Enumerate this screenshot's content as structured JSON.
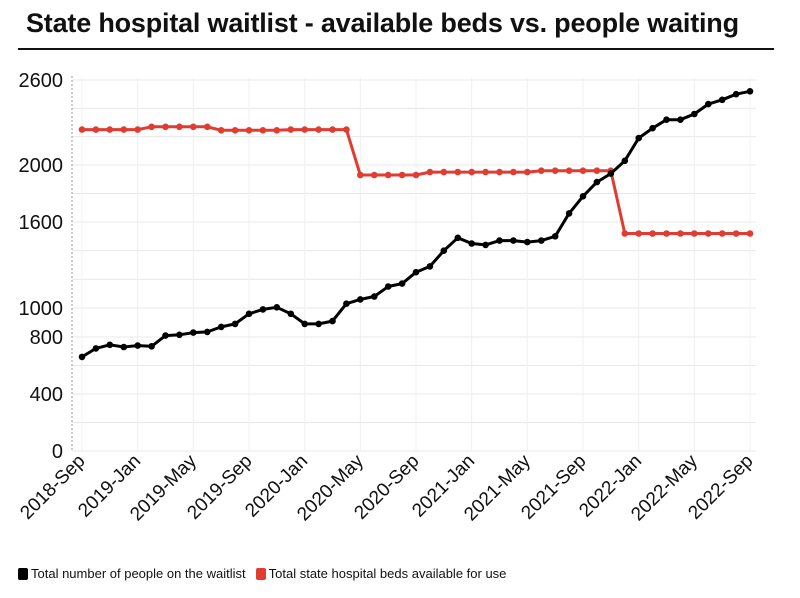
{
  "title": "State hospital waitlist - available beds vs. people waiting",
  "legend": [
    {
      "label": "Total number of people on the waitlist",
      "color": "#000000"
    },
    {
      "label": "Total state hospital beds available for use",
      "color": "#e03c31"
    }
  ],
  "chart_data": {
    "type": "line",
    "title": "State hospital waitlist - available beds vs. people waiting",
    "xlabel": "",
    "ylabel": "",
    "ylim": [
      0,
      2600
    ],
    "y_ticks": [
      0,
      400,
      800,
      1000,
      1600,
      2000,
      2600
    ],
    "x_tick_labels": [
      "2018-Sep",
      "2019-Jan",
      "2019-May",
      "2019-Sep",
      "2020-Jan",
      "2020-May",
      "2020-Sep",
      "2021-Jan",
      "2021-May",
      "2021-Sep",
      "2022-Jan",
      "2022-May",
      "2022-Sep"
    ],
    "legend_position": "bottom-left",
    "grid": true,
    "series": [
      {
        "name": "Total number of people on the waitlist",
        "color": "#000000",
        "values": [
          660,
          720,
          745,
          730,
          740,
          735,
          810,
          815,
          830,
          835,
          870,
          890,
          960,
          990,
          1005,
          960,
          890,
          890,
          910,
          1030,
          1060,
          1080,
          1150,
          1170,
          1250,
          1290,
          1400,
          1490,
          1450,
          1440,
          1470,
          1470,
          1460,
          1470,
          1500,
          1660,
          1780,
          1880,
          1940,
          2030,
          2190,
          2260,
          2320,
          2320,
          2360,
          2430,
          2460,
          2500,
          2520
        ]
      },
      {
        "name": "Total state hospital beds available for use",
        "color": "#e03c31",
        "values": [
          2250,
          2250,
          2250,
          2250,
          2250,
          2270,
          2270,
          2270,
          2270,
          2270,
          2245,
          2245,
          2245,
          2245,
          2245,
          2250,
          2250,
          2250,
          2250,
          2250,
          1930,
          1930,
          1930,
          1930,
          1930,
          1950,
          1950,
          1950,
          1950,
          1950,
          1950,
          1950,
          1950,
          1960,
          1960,
          1960,
          1960,
          1960,
          1960,
          1520,
          1520,
          1520,
          1520,
          1520,
          1520,
          1520,
          1520,
          1520,
          1520
        ]
      }
    ]
  }
}
